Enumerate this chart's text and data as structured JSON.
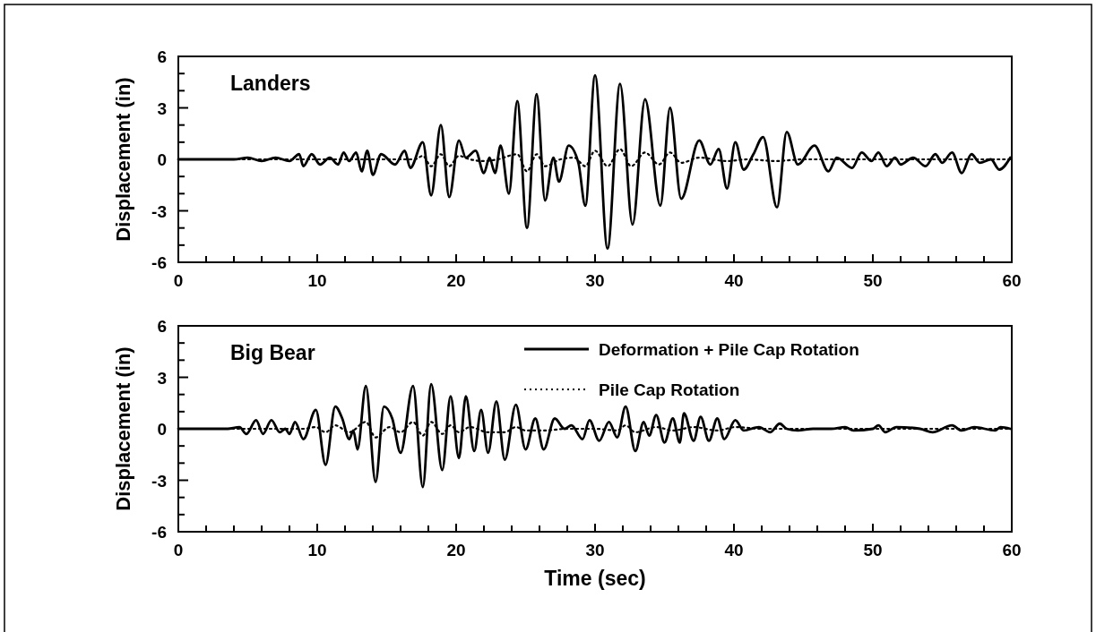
{
  "chart_data": [
    {
      "type": "line",
      "title": "Landers",
      "ylabel": "Displacement (in)",
      "xlim": [
        0,
        60
      ],
      "ylim": [
        -6,
        6
      ],
      "xticks": [
        0,
        {
          "value": 2,
          "label": null
        },
        {
          "value": 4,
          "label": null
        },
        {
          "value": 6,
          "label": null
        },
        {
          "value": 8,
          "label": null
        },
        10,
        {
          "value": 12,
          "label": null
        },
        {
          "value": 14,
          "label": null
        },
        {
          "value": 16,
          "label": null
        },
        {
          "value": 18,
          "label": null
        },
        20,
        {
          "value": 22,
          "label": null
        },
        {
          "value": 24,
          "label": null
        },
        {
          "value": 26,
          "label": null
        },
        {
          "value": 28,
          "label": null
        },
        30,
        {
          "value": 32,
          "label": null
        },
        {
          "value": 34,
          "label": null
        },
        {
          "value": 36,
          "label": null
        },
        {
          "value": 38,
          "label": null
        },
        40,
        {
          "value": 42,
          "label": null
        },
        {
          "value": 44,
          "label": null
        },
        {
          "value": 46,
          "label": null
        },
        {
          "value": 48,
          "label": null
        },
        50,
        {
          "value": 52,
          "label": null
        },
        {
          "value": 54,
          "label": null
        },
        {
          "value": 56,
          "label": null
        },
        {
          "value": 58,
          "label": null
        },
        60
      ],
      "yticks": [
        -6,
        {
          "value": -5,
          "label": null
        },
        {
          "value": -4,
          "label": null
        },
        -3,
        {
          "value": -2,
          "label": null
        },
        {
          "value": -1,
          "label": null
        },
        0,
        {
          "value": 1,
          "label": null
        },
        {
          "value": 2,
          "label": null
        },
        3,
        {
          "value": 4,
          "label": null
        },
        {
          "value": 5,
          "label": null
        },
        6
      ],
      "series": [
        {
          "color": "#000000",
          "line_style": "solid",
          "x": [
            0,
            4,
            5,
            6,
            7,
            8,
            8.7,
            9.0,
            9.6,
            10.2,
            10.9,
            11.5,
            11.9,
            12.3,
            12.8,
            13.2,
            13.6,
            14.0,
            14.6,
            15.6,
            16.3,
            16.7,
            17.6,
            18.2,
            18.9,
            19.5,
            20.2,
            20.7,
            21.4,
            22.0,
            22.4,
            22.8,
            23.2,
            23.8,
            24.4,
            25.1,
            25.8,
            26.4,
            27.0,
            27.4,
            28.1,
            28.8,
            29.3,
            30.0,
            30.9,
            31.8,
            32.7,
            33.6,
            34.7,
            35.4,
            36.2,
            37.5,
            38.3,
            38.9,
            39.5,
            40.1,
            40.7,
            41.4,
            42.1,
            43.1,
            43.8,
            44.6,
            45.8,
            46.8,
            47.4,
            48.5,
            49.2,
            49.9,
            50.4,
            51.0,
            51.6,
            52.0,
            52.9,
            53.8,
            54.5,
            55.0,
            55.7,
            56.4,
            57.1,
            57.7,
            58.5,
            59.1,
            59.9
          ],
          "values": [
            0,
            0,
            0.1,
            -0.1,
            0.1,
            -0.1,
            0.3,
            -0.4,
            0.3,
            -0.3,
            0.1,
            -0.3,
            0.4,
            -0.1,
            0.4,
            -0.7,
            0.5,
            -0.9,
            0.3,
            -0.3,
            0.5,
            -0.5,
            1.0,
            -2.1,
            2.0,
            -2.2,
            1.1,
            0.1,
            0.5,
            -0.8,
            0.1,
            -0.8,
            0.8,
            -2.0,
            3.4,
            -4.0,
            3.8,
            -2.4,
            0.1,
            -1.3,
            0.8,
            -0.2,
            -2.7,
            4.9,
            -5.2,
            4.4,
            -3.8,
            3.5,
            -2.7,
            3.0,
            -2.3,
            1.1,
            -0.3,
            0.6,
            -1.7,
            1.0,
            -0.6,
            0.3,
            1.3,
            -2.8,
            1.6,
            -0.3,
            0.8,
            -0.7,
            0.1,
            -0.5,
            0.4,
            -0.1,
            0.4,
            -0.4,
            0.1,
            -0.3,
            0.1,
            -0.4,
            0.3,
            -0.2,
            0.4,
            -0.8,
            0.3,
            -0.2,
            0.0,
            -0.6,
            0.1
          ]
        },
        {
          "color": "#000000",
          "line_style": "dotted",
          "x": [
            0,
            17,
            17.6,
            18.2,
            18.9,
            19.5,
            20.2,
            21,
            22,
            23,
            24.4,
            25.1,
            25.8,
            26.4,
            27.5,
            28.5,
            29.3,
            30.0,
            30.9,
            31.8,
            32.6,
            33.6,
            34.6,
            35.4,
            36.2,
            37.5,
            39.5,
            41,
            43,
            45,
            50,
            60
          ],
          "values": [
            0,
            0,
            0.2,
            -0.4,
            0.3,
            -0.4,
            0.2,
            0,
            -0.1,
            0,
            0.3,
            -0.7,
            0.3,
            -0.4,
            0,
            0.1,
            -0.4,
            0.5,
            -0.4,
            0.6,
            -0.4,
            0.4,
            -0.3,
            0.4,
            -0.2,
            0.1,
            -0.1,
            0,
            -0.1,
            0,
            0,
            0
          ]
        }
      ]
    },
    {
      "type": "line",
      "title": "Big Bear",
      "xlabel": "Time (sec)",
      "ylabel": "Displacement (in)",
      "xlim": [
        0,
        60
      ],
      "ylim": [
        -6,
        6
      ],
      "legend": "top right",
      "xticks": [
        0,
        {
          "value": 2,
          "label": null
        },
        {
          "value": 4,
          "label": null
        },
        {
          "value": 6,
          "label": null
        },
        {
          "value": 8,
          "label": null
        },
        10,
        {
          "value": 12,
          "label": null
        },
        {
          "value": 14,
          "label": null
        },
        {
          "value": 16,
          "label": null
        },
        {
          "value": 18,
          "label": null
        },
        20,
        {
          "value": 22,
          "label": null
        },
        {
          "value": 24,
          "label": null
        },
        {
          "value": 26,
          "label": null
        },
        {
          "value": 28,
          "label": null
        },
        30,
        {
          "value": 32,
          "label": null
        },
        {
          "value": 34,
          "label": null
        },
        {
          "value": 36,
          "label": null
        },
        {
          "value": 38,
          "label": null
        },
        40,
        {
          "value": 42,
          "label": null
        },
        {
          "value": 44,
          "label": null
        },
        {
          "value": 46,
          "label": null
        },
        {
          "value": 48,
          "label": null
        },
        50,
        {
          "value": 52,
          "label": null
        },
        {
          "value": 54,
          "label": null
        },
        {
          "value": 56,
          "label": null
        },
        {
          "value": 58,
          "label": null
        },
        60
      ],
      "yticks": [
        -6,
        {
          "value": -5,
          "label": null
        },
        {
          "value": -4,
          "label": null
        },
        -3,
        {
          "value": -2,
          "label": null
        },
        {
          "value": -1,
          "label": null
        },
        0,
        {
          "value": 1,
          "label": null
        },
        {
          "value": 2,
          "label": null
        },
        3,
        {
          "value": 4,
          "label": null
        },
        {
          "value": 5,
          "label": null
        },
        6
      ],
      "series": [
        {
          "name": "Deformation + Pile Cap Rotation",
          "color": "#000000",
          "line_style": "solid",
          "x": [
            0,
            3.5,
            4.4,
            4.9,
            5.6,
            6.1,
            6.7,
            7.3,
            7.7,
            8.0,
            8.4,
            9.0,
            9.9,
            10.6,
            11.3,
            11.8,
            12.3,
            12.6,
            12.9,
            13.5,
            14.2,
            14.8,
            15.4,
            16.0,
            16.9,
            17.6,
            18.2,
            19.0,
            19.6,
            20.2,
            20.7,
            21.3,
            21.8,
            22.3,
            22.9,
            23.5,
            24.3,
            25.0,
            25.7,
            26.3,
            27.1,
            27.8,
            28.3,
            29.1,
            29.6,
            30.3,
            31.0,
            31.6,
            32.2,
            32.9,
            33.5,
            33.9,
            34.4,
            35.0,
            35.6,
            36.1,
            36.4,
            37.1,
            37.6,
            38.2,
            38.8,
            39.3,
            40.1,
            40.7,
            41.8,
            42.6,
            43.3,
            43.8,
            44.6,
            45.7,
            47.0,
            48.0,
            48.6,
            50.0,
            50.4,
            50.9,
            51.7,
            53.4,
            54.3,
            55.7,
            56.4,
            57.3,
            58.8,
            59.2,
            59.9
          ],
          "values": [
            0,
            0,
            0.1,
            -0.3,
            0.5,
            -0.3,
            0.5,
            -0.2,
            0,
            -0.3,
            0.4,
            -0.6,
            1.1,
            -2.1,
            1.3,
            0.6,
            -0.6,
            -0.1,
            -1.2,
            2.5,
            -3.1,
            1.3,
            0.6,
            -1.4,
            2.5,
            -3.4,
            2.6,
            -2.4,
            1.9,
            -1.7,
            1.9,
            -1.3,
            1.1,
            -1.4,
            1.6,
            -1.8,
            1.4,
            -1.2,
            0.6,
            -1.2,
            0.6,
            0,
            0.2,
            -0.6,
            0.5,
            -0.7,
            0.4,
            -0.5,
            1.3,
            -1.3,
            0.4,
            -0.4,
            0.8,
            -0.8,
            0.6,
            -0.8,
            0.9,
            -0.7,
            0.7,
            -0.7,
            0.6,
            -0.6,
            0.5,
            -0.1,
            0.1,
            -0.2,
            0.3,
            0,
            -0.1,
            0,
            0,
            0.1,
            -0.1,
            0,
            0.2,
            -0.2,
            0.1,
            0,
            -0.2,
            0.2,
            -0.1,
            0.1,
            -0.1,
            0.1,
            0
          ]
        },
        {
          "name": "Pile Cap Rotation",
          "color": "#000000",
          "line_style": "dotted",
          "x": [
            0,
            9,
            9.9,
            10.6,
            11.3,
            12.3,
            13.5,
            14.2,
            15.2,
            16.0,
            16.9,
            17.6,
            18.2,
            19.0,
            19.6,
            20.2,
            21,
            22.3,
            23.5,
            24.3,
            25,
            26.3,
            28,
            30,
            31.6,
            32.2,
            32.9,
            34.4,
            35.6,
            37.1,
            38.8,
            40.1,
            42,
            60
          ],
          "values": [
            0,
            0,
            0.1,
            -0.2,
            0.2,
            -0.2,
            0.4,
            -0.5,
            0.1,
            -0.2,
            0.4,
            -0.4,
            0.4,
            -0.3,
            0.2,
            -0.2,
            0.1,
            -0.2,
            -0.2,
            0.1,
            -0.1,
            -0.1,
            0,
            0,
            -0.1,
            0.2,
            -0.2,
            0.1,
            -0.1,
            0.1,
            -0.1,
            0.1,
            0,
            0
          ]
        }
      ]
    }
  ]
}
